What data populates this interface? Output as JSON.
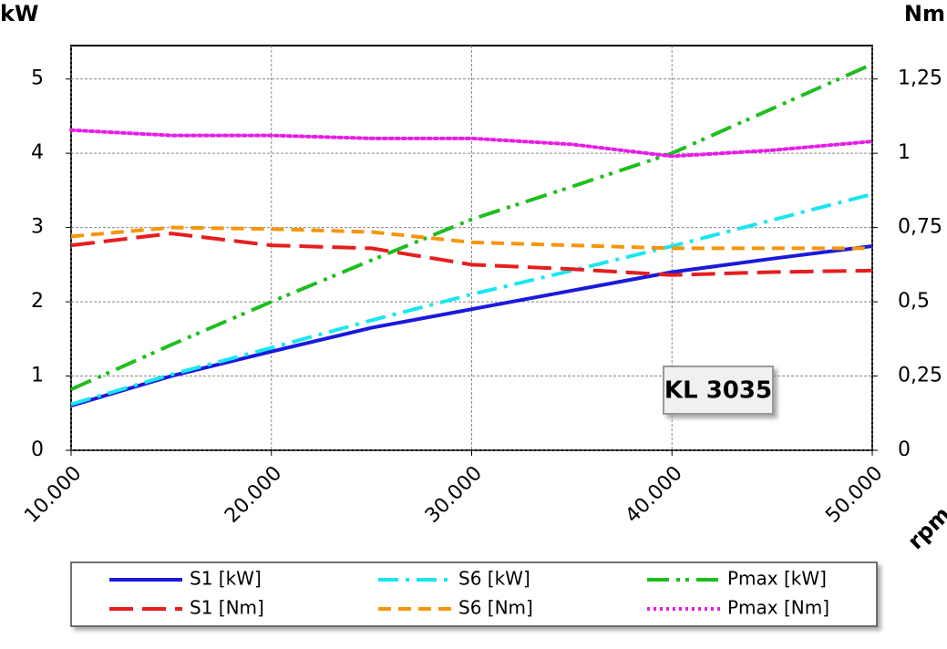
{
  "chart_data": {
    "type": "line",
    "y_label": "kW",
    "y2_label": "Nm",
    "x_label": "rpm",
    "annotation": "KL 3035",
    "x": [
      10000,
      15000,
      20000,
      25000,
      30000,
      35000,
      40000,
      45000,
      50000
    ],
    "xlim": [
      10000,
      50000
    ],
    "xticks": [
      {
        "value": 10000,
        "label": "10.000"
      },
      {
        "value": 20000,
        "label": "20.000"
      },
      {
        "value": 30000,
        "label": "30.000"
      },
      {
        "value": 40000,
        "label": "40.000"
      },
      {
        "value": 50000,
        "label": "50.000"
      }
    ],
    "ylim": [
      0,
      5.45
    ],
    "yticks": [
      0,
      1,
      2,
      3,
      4,
      5
    ],
    "y2lim": [
      0,
      1.3625
    ],
    "y2ticks": [
      0,
      {
        "value": 0.25,
        "label": "0,25"
      },
      {
        "value": 0.5,
        "label": "0,5"
      },
      {
        "value": 0.75,
        "label": "0,75"
      },
      1,
      {
        "value": 1.25,
        "label": "1,25"
      }
    ],
    "grid": true,
    "series": [
      {
        "name": "S1 [kW]",
        "color": "#1a1adc",
        "dash": "solid",
        "values": [
          0.6,
          1.0,
          1.33,
          1.65,
          1.9,
          2.15,
          2.4,
          2.58,
          2.75
        ]
      },
      {
        "name": "S6 [kW]",
        "color": "#19e6f0",
        "dash": "dashdot",
        "values": [
          0.62,
          1.02,
          1.38,
          1.75,
          2.1,
          2.42,
          2.75,
          3.1,
          3.45
        ]
      },
      {
        "name": "Pmax [kW]",
        "color": "#1ebe1e",
        "dash": "dashdotdot",
        "values": [
          0.82,
          1.42,
          2.0,
          2.56,
          3.11,
          3.55,
          4.0,
          4.6,
          5.2
        ]
      },
      {
        "name": "S1 [Nm]",
        "color": "#e61e1e",
        "dash": "longdash",
        "axis": "y2",
        "values": [
          0.69,
          0.73,
          0.69,
          0.68,
          0.625,
          0.61,
          0.59,
          0.6,
          0.605
        ]
      },
      {
        "name": "S6 [Nm]",
        "color": "#f5960a",
        "dash": "dash",
        "axis": "y2",
        "values": [
          0.72,
          0.75,
          0.745,
          0.735,
          0.7,
          0.69,
          0.68,
          0.68,
          0.68
        ]
      },
      {
        "name": "Pmax [Nm]",
        "color": "#e61ee6",
        "dash": "dot",
        "axis": "y2",
        "values": [
          1.078,
          1.06,
          1.06,
          1.05,
          1.05,
          1.03,
          0.99,
          1.01,
          1.04
        ]
      }
    ]
  }
}
